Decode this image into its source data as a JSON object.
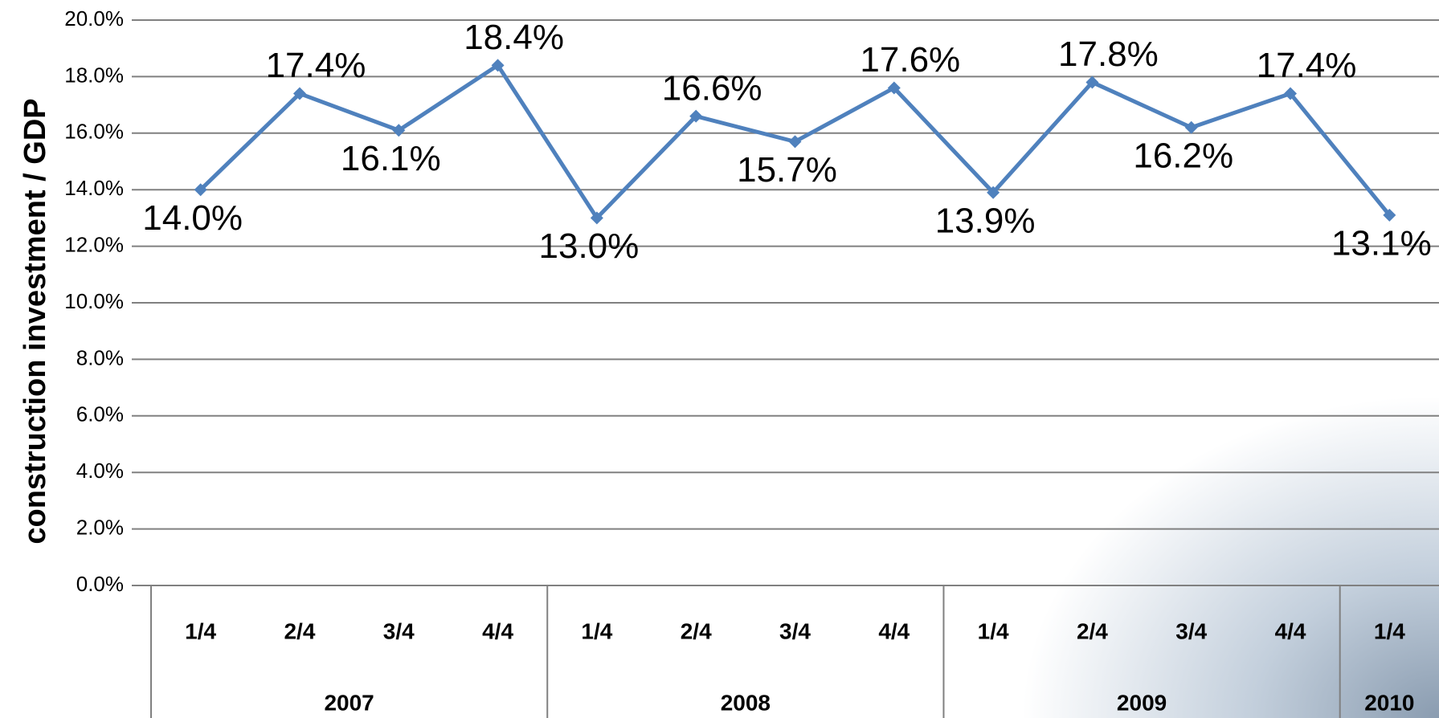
{
  "chart_data": {
    "type": "line",
    "y_label": "construction investment / GDP",
    "groups": [
      {
        "label": "2007",
        "categories": [
          "1/4",
          "2/4",
          "3/4",
          "4/4"
        ]
      },
      {
        "label": "2008",
        "categories": [
          "1/4",
          "2/4",
          "3/4",
          "4/4"
        ]
      },
      {
        "label": "2009",
        "categories": [
          "1/4",
          "2/4",
          "3/4",
          "4/4"
        ]
      },
      {
        "label": "2010",
        "categories": [
          "1/4"
        ]
      }
    ],
    "series": [
      {
        "color": "#4f81bd",
        "values": [
          14.0,
          17.4,
          16.1,
          18.4,
          13.0,
          16.6,
          15.7,
          17.6,
          13.9,
          17.8,
          16.2,
          17.4,
          13.1
        ],
        "value_labels": [
          "14.0%",
          "17.4%",
          "16.1%",
          "18.4%",
          "13.0%",
          "16.6%",
          "15.7%",
          "17.6%",
          "13.9%",
          "17.8%",
          "16.2%",
          "17.4%",
          "13.1%"
        ]
      }
    ],
    "ylim": [
      0,
      20
    ],
    "yticks": [
      {
        "value": 0,
        "label": "0.0%"
      },
      {
        "value": 2,
        "label": "2.0%"
      },
      {
        "value": 4,
        "label": "4.0%"
      },
      {
        "value": 6,
        "label": "6.0%"
      },
      {
        "value": 8,
        "label": "8.0%"
      },
      {
        "value": 10,
        "label": "10.0%"
      },
      {
        "value": 12,
        "label": "12.0%"
      },
      {
        "value": 14,
        "label": "14.0%"
      },
      {
        "value": 16,
        "label": "16.0%"
      },
      {
        "value": 18,
        "label": "18.0%"
      },
      {
        "value": 20,
        "label": "20.0%"
      }
    ],
    "grid": true
  }
}
